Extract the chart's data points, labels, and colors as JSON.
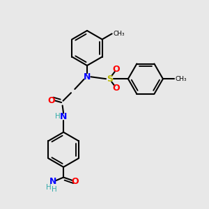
{
  "bg_color": "#e8e8e8",
  "line_color": "#000000",
  "bond_width": 1.5,
  "N_color": "#0000ff",
  "O_color": "#ff0000",
  "S_color": "#bbbb00",
  "H_color": "#33aaaa",
  "figsize": [
    3.0,
    3.0
  ],
  "dpi": 100,
  "xlim": [
    0,
    10
  ],
  "ylim": [
    0,
    10
  ]
}
